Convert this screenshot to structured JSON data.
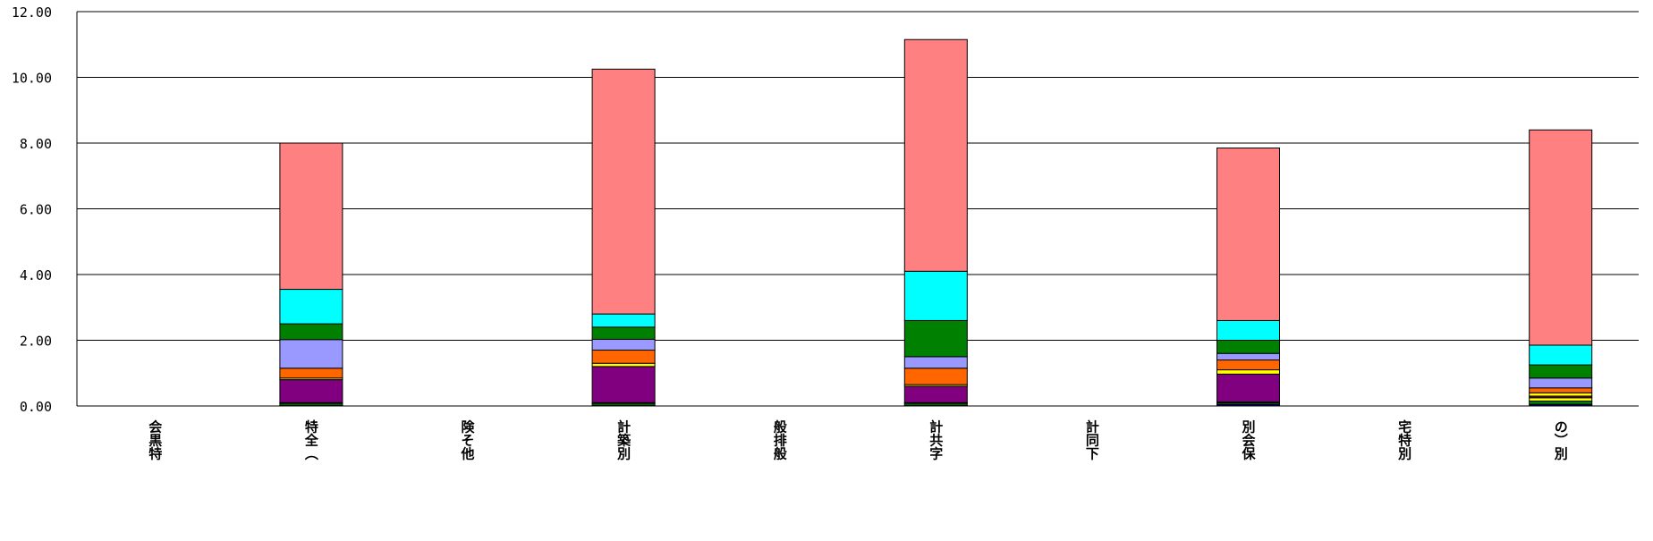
{
  "chart_data": {
    "type": "bar",
    "stacked": true,
    "categories": [
      "会黒特",
      "特全（",
      "険そ他",
      "計築別",
      "般排般",
      "計共字",
      "計同下",
      "別会保",
      "宅特別",
      "の）別"
    ],
    "ylim": [
      0,
      12
    ],
    "yticks": [
      "0.00",
      "2.00",
      "4.00",
      "6.00",
      "8.00",
      "10.00",
      "12.00"
    ],
    "grid": true,
    "legend": "none",
    "series": [
      {
        "color": "#000080",
        "values": [
          0,
          0.02,
          0,
          0.02,
          0,
          0.02,
          0,
          0.05,
          0,
          0.05
        ]
      },
      {
        "color": "#008000",
        "values": [
          0,
          0.06,
          0,
          0.06,
          0,
          0.06,
          0,
          0.05,
          0,
          0.1
        ]
      },
      {
        "color": "#FFFF00",
        "values": [
          0,
          0.02,
          0,
          0.02,
          0,
          0.02,
          0,
          0.02,
          0,
          0.1
        ]
      },
      {
        "color": "#800080",
        "values": [
          0,
          0.7,
          0,
          1.1,
          0,
          0.5,
          0,
          0.85,
          0,
          0.05
        ]
      },
      {
        "color": "#FFFF00",
        "values": [
          0,
          0.05,
          0,
          0.1,
          0,
          0.05,
          0,
          0.13,
          0,
          0.1
        ]
      },
      {
        "color": "#FF6600",
        "values": [
          0,
          0.3,
          0,
          0.4,
          0,
          0.5,
          0,
          0.3,
          0,
          0.15
        ]
      },
      {
        "color": "#9999FF",
        "values": [
          0,
          0.87,
          0,
          0.33,
          0,
          0.35,
          0,
          0.2,
          0,
          0.3
        ]
      },
      {
        "color": "#008000",
        "values": [
          0,
          0.48,
          0,
          0.37,
          0,
          1.1,
          0,
          0.4,
          0,
          0.4
        ]
      },
      {
        "color": "#00FFFF",
        "values": [
          0,
          1.05,
          0,
          0.4,
          0,
          1.5,
          0,
          0.6,
          0,
          0.6
        ]
      },
      {
        "color": "#FF8080",
        "values": [
          0,
          4.45,
          0,
          7.45,
          0,
          7.05,
          0,
          5.25,
          0,
          6.55
        ]
      }
    ]
  }
}
